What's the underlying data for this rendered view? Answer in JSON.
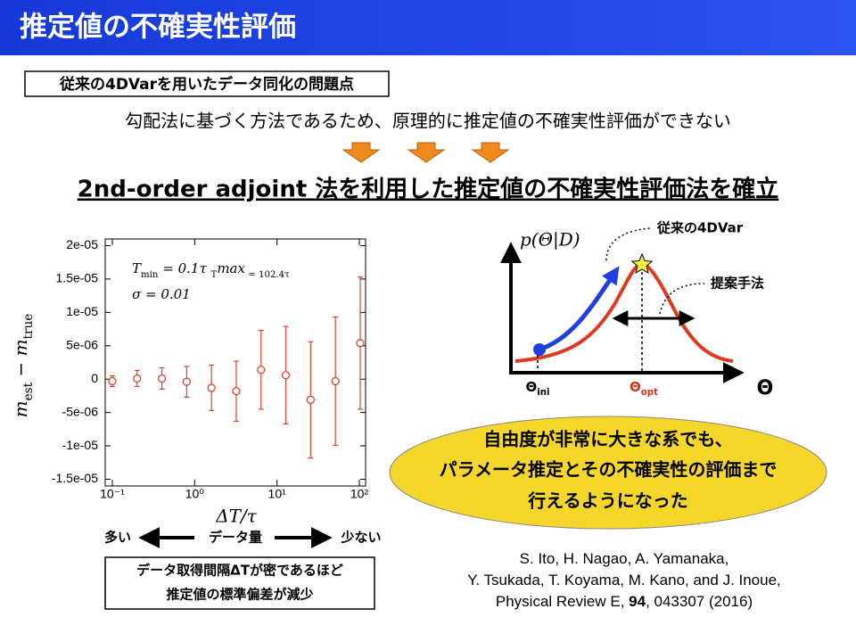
{
  "header": {
    "title": "推定値の不確実性評価"
  },
  "problem_label": "従来の4DVarを用いたデータ同化の問題点",
  "problem": "勾配法に基づく方法であるため、原理的に推定値の不確実性評価ができない",
  "solution": "2nd-order adjoint 法を利用した推定値の不確実性評価法を確立",
  "chart_data": {
    "type": "errorbar",
    "x_label": "ΔT/τ",
    "y_label": [
      "m",
      "est",
      " − m",
      "true"
    ],
    "annotations": [
      [
        "T",
        "min",
        " = 0.1τ    ",
        "T",
        "max",
        " = 102.4τ"
      ],
      [
        "σ = 0.01"
      ]
    ],
    "x": [
      0.1,
      0.2,
      0.4,
      0.8,
      1.6,
      3.2,
      6.4,
      12.8,
      25.6,
      51.2,
      102.4
    ],
    "values": [
      -3e-07,
      1e-07,
      1e-07,
      -4e-07,
      -1.3e-06,
      -1.8e-06,
      1.4e-06,
      6e-07,
      -3.1e-06,
      -3e-07,
      5.4e-06
    ],
    "errors": [
      8e-07,
      1.2e-06,
      1.6e-06,
      2.3e-06,
      3.4e-06,
      4.5e-06,
      5.9e-06,
      7.3e-06,
      8.7e-06,
      9.6e-06,
      9.9e-06
    ],
    "color": "#d9472b",
    "xlog": true,
    "xlim": [
      0.082,
      119
    ],
    "xticks": [
      {
        "value": 0.1,
        "label": "10⁻¹"
      },
      {
        "value": 1,
        "label": "10⁰"
      },
      {
        "value": 10,
        "label": "10¹"
      },
      {
        "value": 100,
        "label": "10²"
      }
    ],
    "ylim": [
      -1.6e-05,
      2.1e-05
    ],
    "yticks": [
      {
        "value": 2e-05,
        "label": "2e-05"
      },
      {
        "value": 1.5e-05,
        "label": "1.5e-05"
      },
      {
        "value": 1e-05,
        "label": "1e-05"
      },
      {
        "value": 5e-06,
        "label": "5e-06"
      },
      0,
      {
        "value": -5e-06,
        "label": "-5e-06"
      },
      {
        "value": -1e-05,
        "label": "-1e-05"
      },
      {
        "value": -1.5e-05,
        "label": "-1.5e-05"
      }
    ]
  },
  "data_amount": {
    "left": "多い",
    "center": "データ量",
    "right": "少ない"
  },
  "chart_note": [
    "データ取得間隔ΔTが密であるほど",
    "推定値の標準偏差が減少"
  ],
  "diagram": {
    "y_axis": "p(Θ|D)",
    "label_conventional": "従来の4DVar",
    "label_proposed": "提案手法",
    "theta_ini": [
      "Θ",
      "ini"
    ],
    "theta_opt": [
      "Θ",
      "opt"
    ],
    "x_axis": "Θ"
  },
  "highlight": [
    "自由度が非常に大きな系でも、",
    "パラメータ推定とその不確実性の評価まで",
    "行えるようになった"
  ],
  "citation": [
    [
      "S. Ito, H. Nagao, A. Yamanaka,"
    ],
    [
      "Y. Tsukada, T. Koyama, M. Kano, and J. Inoue,"
    ],
    [
      "Physical Review E, ",
      "94",
      ", 043307 (2016)"
    ]
  ]
}
